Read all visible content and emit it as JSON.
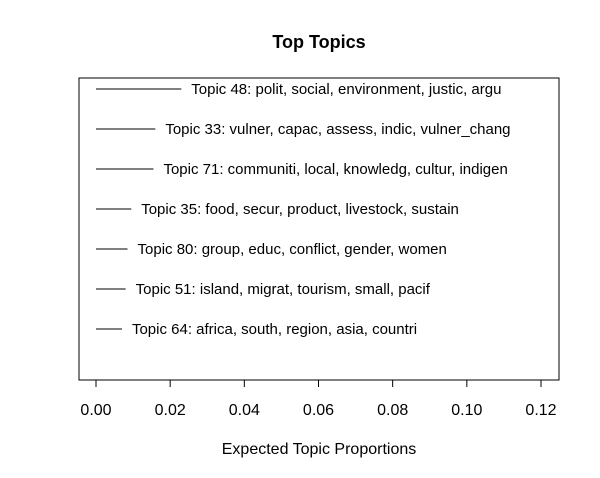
{
  "chart_data": {
    "type": "bar",
    "orientation": "horizontal",
    "title": "Top Topics",
    "xlabel": "Expected Topic Proportions",
    "ylabel": "",
    "xlim": [
      0,
      0.12
    ],
    "xticks": [
      "0.00",
      "0.02",
      "0.04",
      "0.06",
      "0.08",
      "0.10",
      "0.12"
    ],
    "xtick_values": [
      0,
      0.02,
      0.04,
      0.06,
      0.08,
      0.1,
      0.12
    ],
    "grid": false,
    "legend": "none",
    "bar_color": "#000000",
    "categories": [
      "Topic 48: polit, social, environment, justic, argu",
      "Topic 33: vulner, capac, assess, indic, vulner_chang",
      "Topic 71: communiti, local, knowledg, cultur, indigen",
      "Topic 35: food, secur, product, livestock, sustain",
      "Topic 80: group, educ, conflict, gender, women",
      "Topic 51: island, migrat, tourism, small, pacif",
      "Topic 64: africa, south, region, asia, countri"
    ],
    "values": [
      0.023,
      0.016,
      0.0155,
      0.0095,
      0.0085,
      0.008,
      0.007
    ]
  }
}
